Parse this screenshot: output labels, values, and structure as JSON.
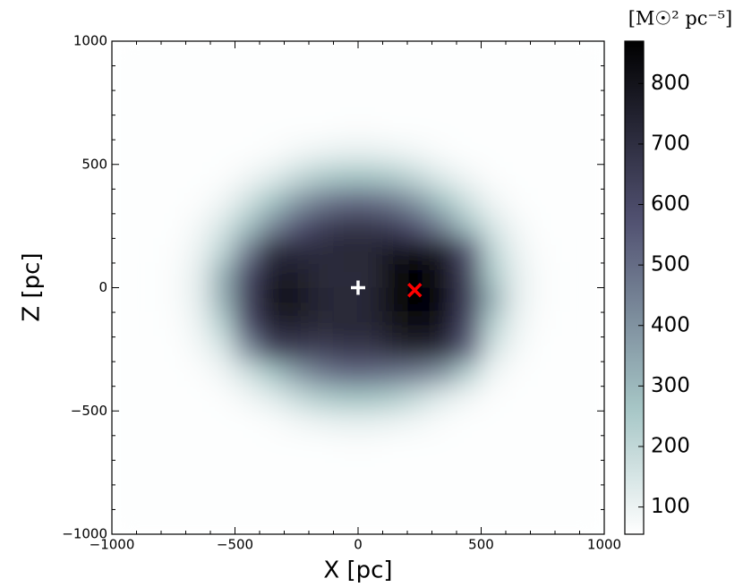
{
  "chart_data": {
    "type": "heatmap",
    "xlabel": "X [pc]",
    "ylabel": "Z [pc]",
    "xlim": [
      -1000,
      1000
    ],
    "ylim": [
      -1000,
      1000
    ],
    "xticks": [
      {
        "value": -1000,
        "label": "−1000"
      },
      {
        "value": -500,
        "label": "−500"
      },
      0,
      500,
      1000
    ],
    "yticks": [
      {
        "value": -1000,
        "label": "−1000"
      },
      {
        "value": -500,
        "label": "−500"
      },
      0,
      500,
      1000
    ],
    "xminorticks": [
      -900,
      -800,
      -700,
      -600,
      -400,
      -300,
      -200,
      -100,
      100,
      200,
      300,
      400,
      600,
      700,
      800,
      900
    ],
    "yminorticks": [
      -900,
      -800,
      -700,
      -600,
      -400,
      -300,
      -200,
      -100,
      100,
      200,
      300,
      400,
      600,
      700,
      800,
      900
    ],
    "colormap": "bone_r",
    "x": [
      -950,
      -850,
      -750,
      -650,
      -550,
      -450,
      -350,
      -250,
      -150,
      -50,
      50,
      150,
      250,
      350,
      450,
      550,
      650,
      750,
      850,
      950
    ],
    "y": [
      950,
      850,
      750,
      650,
      550,
      450,
      350,
      250,
      150,
      50,
      -50,
      -150,
      -250,
      -350,
      -450,
      -550,
      -650,
      -750,
      -850,
      -950
    ],
    "z": [
      [
        60,
        60,
        60,
        60,
        60,
        60,
        60,
        60,
        60,
        60,
        60,
        60,
        60,
        60,
        60,
        60,
        60,
        60,
        60,
        60
      ],
      [
        60,
        60,
        60,
        60,
        60,
        60,
        60,
        60,
        60,
        60,
        60,
        60,
        60,
        60,
        60,
        60,
        60,
        60,
        60,
        60
      ],
      [
        60,
        60,
        60,
        60,
        60,
        60,
        60,
        60,
        60,
        60,
        60,
        60,
        60,
        60,
        60,
        60,
        60,
        60,
        60,
        60
      ],
      [
        60,
        60,
        60,
        60,
        60,
        60,
        60,
        60,
        60,
        62,
        62,
        60,
        60,
        60,
        60,
        60,
        60,
        60,
        60,
        60
      ],
      [
        60,
        60,
        60,
        60,
        60,
        60,
        67,
        84,
        100,
        110,
        110,
        100,
        84,
        67,
        60,
        60,
        60,
        60,
        60,
        60
      ],
      [
        60,
        60,
        60,
        60,
        62,
        86,
        125,
        185,
        240,
        265,
        265,
        240,
        185,
        125,
        86,
        62,
        60,
        60,
        60,
        60
      ],
      [
        60,
        60,
        60,
        63,
        90,
        160,
        262,
        375,
        455,
        500,
        500,
        455,
        375,
        262,
        160,
        90,
        63,
        60,
        60,
        60
      ],
      [
        60,
        60,
        60,
        80,
        145,
        270,
        428,
        552,
        630,
        665,
        665,
        630,
        552,
        428,
        270,
        145,
        80,
        60,
        60,
        60
      ],
      [
        60,
        60,
        63,
        100,
        208,
        450,
        700,
        710,
        710,
        728,
        728,
        780,
        800,
        760,
        560,
        208,
        100,
        63,
        60,
        60
      ],
      [
        60,
        60,
        66,
        116,
        320,
        600,
        760,
        760,
        720,
        710,
        720,
        830,
        860,
        800,
        620,
        250,
        116,
        66,
        60,
        60
      ],
      [
        60,
        60,
        66,
        116,
        320,
        620,
        790,
        790,
        730,
        715,
        730,
        840,
        865,
        810,
        630,
        320,
        116,
        66,
        60,
        60
      ],
      [
        60,
        60,
        63,
        100,
        230,
        580,
        740,
        750,
        720,
        728,
        728,
        800,
        830,
        780,
        600,
        230,
        100,
        63,
        60,
        60
      ],
      [
        60,
        60,
        60,
        80,
        145,
        400,
        620,
        650,
        640,
        665,
        665,
        720,
        750,
        700,
        520,
        160,
        80,
        60,
        60,
        60
      ],
      [
        60,
        60,
        60,
        63,
        90,
        160,
        262,
        375,
        455,
        500,
        500,
        480,
        450,
        380,
        220,
        90,
        63,
        60,
        60,
        60
      ],
      [
        60,
        60,
        60,
        60,
        62,
        86,
        125,
        185,
        240,
        265,
        265,
        240,
        185,
        125,
        86,
        62,
        60,
        60,
        60,
        60
      ],
      [
        60,
        60,
        60,
        60,
        60,
        60,
        67,
        84,
        100,
        110,
        110,
        100,
        84,
        67,
        60,
        60,
        60,
        60,
        60,
        60
      ],
      [
        60,
        60,
        60,
        60,
        60,
        60,
        60,
        60,
        60,
        62,
        62,
        60,
        60,
        60,
        60,
        60,
        60,
        60,
        60,
        60
      ],
      [
        60,
        60,
        60,
        60,
        60,
        60,
        60,
        60,
        60,
        60,
        60,
        60,
        60,
        60,
        60,
        60,
        60,
        60,
        60,
        60
      ],
      [
        60,
        60,
        60,
        60,
        60,
        60,
        60,
        60,
        60,
        60,
        60,
        60,
        60,
        60,
        60,
        60,
        60,
        60,
        60,
        60
      ],
      [
        60,
        60,
        60,
        60,
        60,
        60,
        60,
        60,
        60,
        60,
        60,
        60,
        60,
        60,
        60,
        60,
        60,
        60,
        60,
        60
      ]
    ],
    "colorbar": {
      "label": "[M☉² pc⁻⁵]",
      "lim": [
        55,
        870
      ],
      "ticks": [
        100,
        200,
        300,
        400,
        500,
        600,
        700,
        800
      ]
    },
    "markers": [
      {
        "x": 0,
        "y": 0,
        "marker": "+",
        "color": "#ffffff"
      },
      {
        "x": 230,
        "y": -10,
        "marker": "x",
        "color": "#ff0000"
      }
    ]
  }
}
